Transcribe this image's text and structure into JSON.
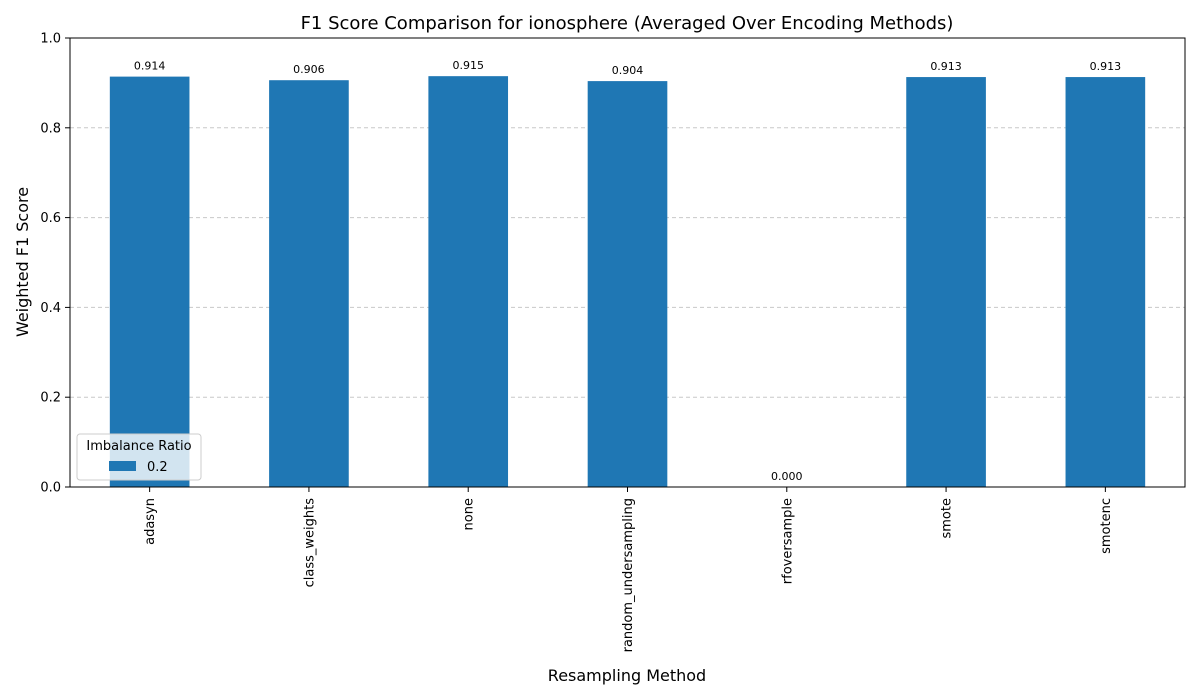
{
  "chart_data": {
    "type": "bar",
    "title": "F1 Score Comparison for ionosphere (Averaged Over Encoding Methods)",
    "xlabel": "Resampling Method",
    "ylabel": "Weighted F1 Score",
    "ylim": [
      0,
      1.0
    ],
    "yticks": [
      "0.0",
      "0.2",
      "0.4",
      "0.6",
      "0.8",
      "1.0"
    ],
    "grid": "horizontal dashed",
    "legend_position": "lower-left",
    "categories": [
      "adasyn",
      "class_weights",
      "none",
      "random_undersampling",
      "rfoversample",
      "smote",
      "smotenc"
    ],
    "series": [
      {
        "name": "0.2",
        "color": "#1f77b4",
        "values": [
          0.914,
          0.906,
          0.915,
          0.904,
          0.0,
          0.913,
          0.913
        ],
        "labels": [
          "0.914",
          "0.906",
          "0.915",
          "0.904",
          "0.000",
          "0.913",
          "0.913"
        ]
      }
    ],
    "legend": {
      "title": "Imbalance Ratio",
      "entries": [
        "0.2"
      ]
    }
  }
}
